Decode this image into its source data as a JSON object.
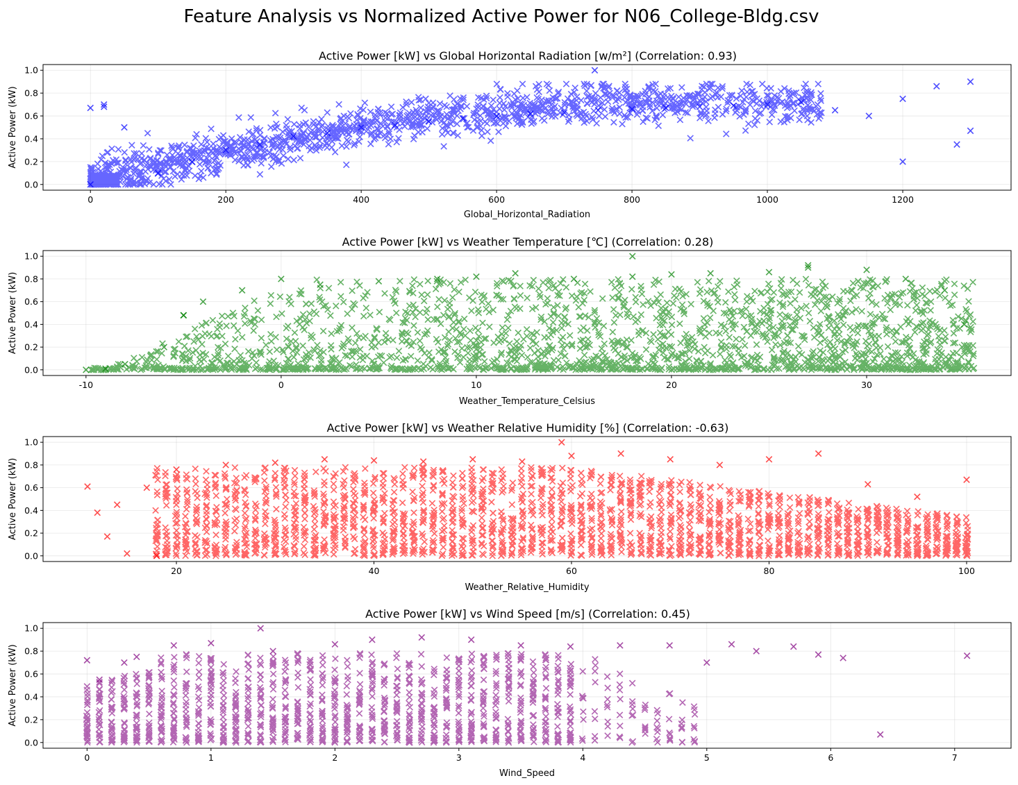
{
  "figure": {
    "title": "Feature Analysis vs Normalized Active Power for N06_College-Bldg.csv"
  },
  "chart_data": [
    {
      "type": "scatter",
      "title": "Active Power [kW] vs Global Horizontal Radiation [w/m²] (Correlation: 0.93)",
      "xlabel": "Global_Horizontal_Radiation",
      "ylabel": "Active Power (kW)",
      "color": "#0000ff",
      "marker": "x",
      "xlim": [
        -70,
        1360
      ],
      "ylim": [
        -0.05,
        1.05
      ],
      "xticks": [
        0,
        200,
        400,
        600,
        800,
        1000,
        1200
      ],
      "yticks": [
        0.0,
        0.2,
        0.4,
        0.6,
        0.8,
        1.0
      ],
      "grid": true,
      "series": [
        {
          "x": [
            0,
            0,
            20,
            20,
            50,
            100,
            150,
            200,
            250,
            300,
            350,
            400,
            450,
            500,
            550,
            600,
            650,
            700,
            750,
            800,
            850,
            900,
            950,
            1000,
            1050,
            1100,
            1150,
            1200,
            1250,
            1300,
            745,
            1300,
            1200,
            1280
          ],
          "y": [
            0.0,
            0.67,
            0.7,
            0.68,
            0.5,
            0.1,
            0.2,
            0.3,
            0.35,
            0.42,
            0.45,
            0.5,
            0.52,
            0.55,
            0.58,
            0.6,
            0.62,
            0.63,
            0.65,
            0.66,
            0.67,
            0.68,
            0.69,
            0.7,
            0.72,
            0.65,
            0.6,
            0.75,
            0.86,
            0.9,
            1.0,
            0.47,
            0.2,
            0.35
          ]
        }
      ]
    },
    {
      "type": "scatter",
      "title": "Active Power [kW] vs Weather Temperature [℃] (Correlation: 0.28)",
      "xlabel": "Weather_Temperature_Celsius",
      "ylabel": "Active Power (kW)",
      "color": "#008000",
      "marker": "x",
      "xlim": [
        -12.2,
        37.4
      ],
      "ylim": [
        -0.05,
        1.05
      ],
      "xticks": [
        -10,
        0,
        10,
        20,
        30
      ],
      "yticks": [
        0.0,
        0.2,
        0.4,
        0.6,
        0.8,
        1.0
      ],
      "grid": true,
      "series": [
        {
          "x": [
            -10,
            -9,
            -8,
            -6,
            -5,
            -4,
            -2,
            0,
            2,
            5,
            8,
            10,
            12,
            15,
            18,
            20,
            22,
            25,
            27,
            30,
            32,
            34,
            35,
            18,
            27,
            -5
          ],
          "y": [
            0.0,
            0.01,
            0.05,
            0.2,
            0.48,
            0.6,
            0.7,
            0.8,
            0.75,
            0.78,
            0.8,
            0.82,
            0.85,
            0.8,
            0.82,
            0.84,
            0.85,
            0.86,
            0.9,
            0.88,
            0.8,
            0.7,
            0.4,
            1.0,
            0.92,
            0.48
          ]
        }
      ]
    },
    {
      "type": "scatter",
      "title": "Active Power [kW] vs Weather Relative Humidity [%] (Correlation: -0.63)",
      "xlabel": "Weather_Relative_Humidity",
      "ylabel": "Active Power (kW)",
      "color": "#ff0000",
      "marker": "x",
      "xlim": [
        6.5,
        104.5
      ],
      "ylim": [
        -0.05,
        1.05
      ],
      "xticks": [
        20,
        40,
        60,
        80,
        100
      ],
      "yticks": [
        0.0,
        0.2,
        0.4,
        0.6,
        0.8,
        1.0
      ],
      "grid": true,
      "series": [
        {
          "x": [
            11,
            12,
            13,
            14,
            15,
            17,
            18,
            20,
            25,
            30,
            35,
            40,
            45,
            50,
            55,
            59,
            60,
            65,
            70,
            75,
            80,
            85,
            90,
            95,
            100
          ],
          "y": [
            0.61,
            0.38,
            0.17,
            0.45,
            0.02,
            0.6,
            0.0,
            0.76,
            0.8,
            0.82,
            0.85,
            0.84,
            0.83,
            0.85,
            0.83,
            1.0,
            0.88,
            0.9,
            0.85,
            0.8,
            0.85,
            0.9,
            0.63,
            0.52,
            0.67
          ]
        }
      ]
    },
    {
      "type": "scatter",
      "title": "Active Power [kW] vs Wind Speed [m/s] (Correlation: 0.45)",
      "xlabel": "Wind_Speed",
      "ylabel": "Active Power (kW)",
      "color": "#800080",
      "marker": "x",
      "xlim": [
        -0.355,
        7.455
      ],
      "ylim": [
        -0.05,
        1.05
      ],
      "xticks": [
        0,
        1,
        2,
        3,
        4,
        5,
        6,
        7
      ],
      "yticks": [
        0.0,
        0.2,
        0.4,
        0.6,
        0.8,
        1.0
      ],
      "grid": true,
      "series": [
        {
          "x": [
            0,
            0.1,
            0.3,
            0.4,
            0.7,
            1.0,
            1.4,
            1.5,
            2.0,
            2.3,
            2.7,
            3.1,
            3.5,
            3.9,
            4.3,
            4.7,
            5.0,
            5.2,
            5.4,
            5.7,
            5.9,
            6.1,
            6.4,
            7.1
          ],
          "y": [
            0.72,
            0.55,
            0.7,
            0.75,
            0.85,
            0.87,
            1.0,
            0.8,
            0.86,
            0.9,
            0.92,
            0.9,
            0.85,
            0.84,
            0.85,
            0.85,
            0.7,
            0.86,
            0.8,
            0.84,
            0.77,
            0.74,
            0.07,
            0.76
          ]
        }
      ]
    }
  ]
}
